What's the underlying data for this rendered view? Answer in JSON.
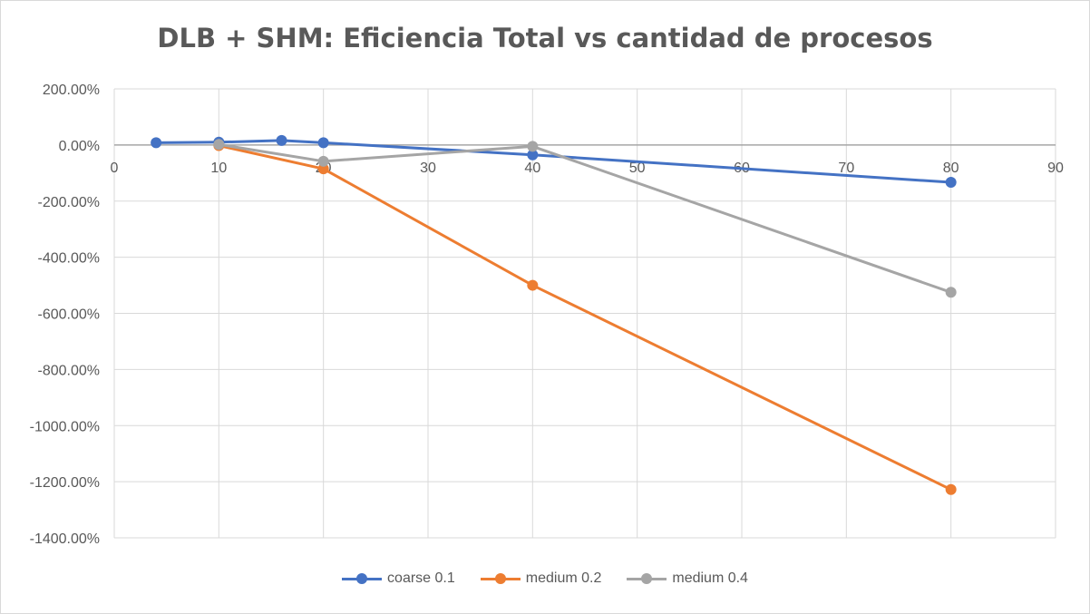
{
  "chart_data": {
    "type": "scatter",
    "title": "DLB + SHM: Eficiencia Total vs cantidad de procesos",
    "xlabel": "",
    "ylabel": "",
    "xlim": [
      0,
      90
    ],
    "ylim": [
      -1400,
      200
    ],
    "x_ticks": [
      "0",
      "10",
      "20",
      "30",
      "40",
      "50",
      "60",
      "70",
      "80",
      "90"
    ],
    "y_ticks": [
      "200.00%",
      "0.00%",
      "-200.00%",
      "-400.00%",
      "-600.00%",
      "-800.00%",
      "-1000.00%",
      "-1200.00%",
      "-1400.00%"
    ],
    "grid": true,
    "legend_position": "bottom",
    "series": [
      {
        "name": "coarse 0.1",
        "color": "#4472c4",
        "points": [
          [
            4,
            8
          ],
          [
            10,
            10
          ],
          [
            16,
            16
          ],
          [
            20,
            8
          ],
          [
            40,
            -35
          ],
          [
            80,
            -133
          ]
        ]
      },
      {
        "name": "medium 0.2",
        "color": "#ed7d31",
        "points": [
          [
            10,
            -2
          ],
          [
            20,
            -85
          ],
          [
            40,
            -500
          ],
          [
            80,
            -1228
          ]
        ]
      },
      {
        "name": "medium 0.4",
        "color": "#a5a5a5",
        "points": [
          [
            10,
            2
          ],
          [
            20,
            -58
          ],
          [
            40,
            -5
          ],
          [
            80,
            -525
          ]
        ]
      }
    ]
  }
}
